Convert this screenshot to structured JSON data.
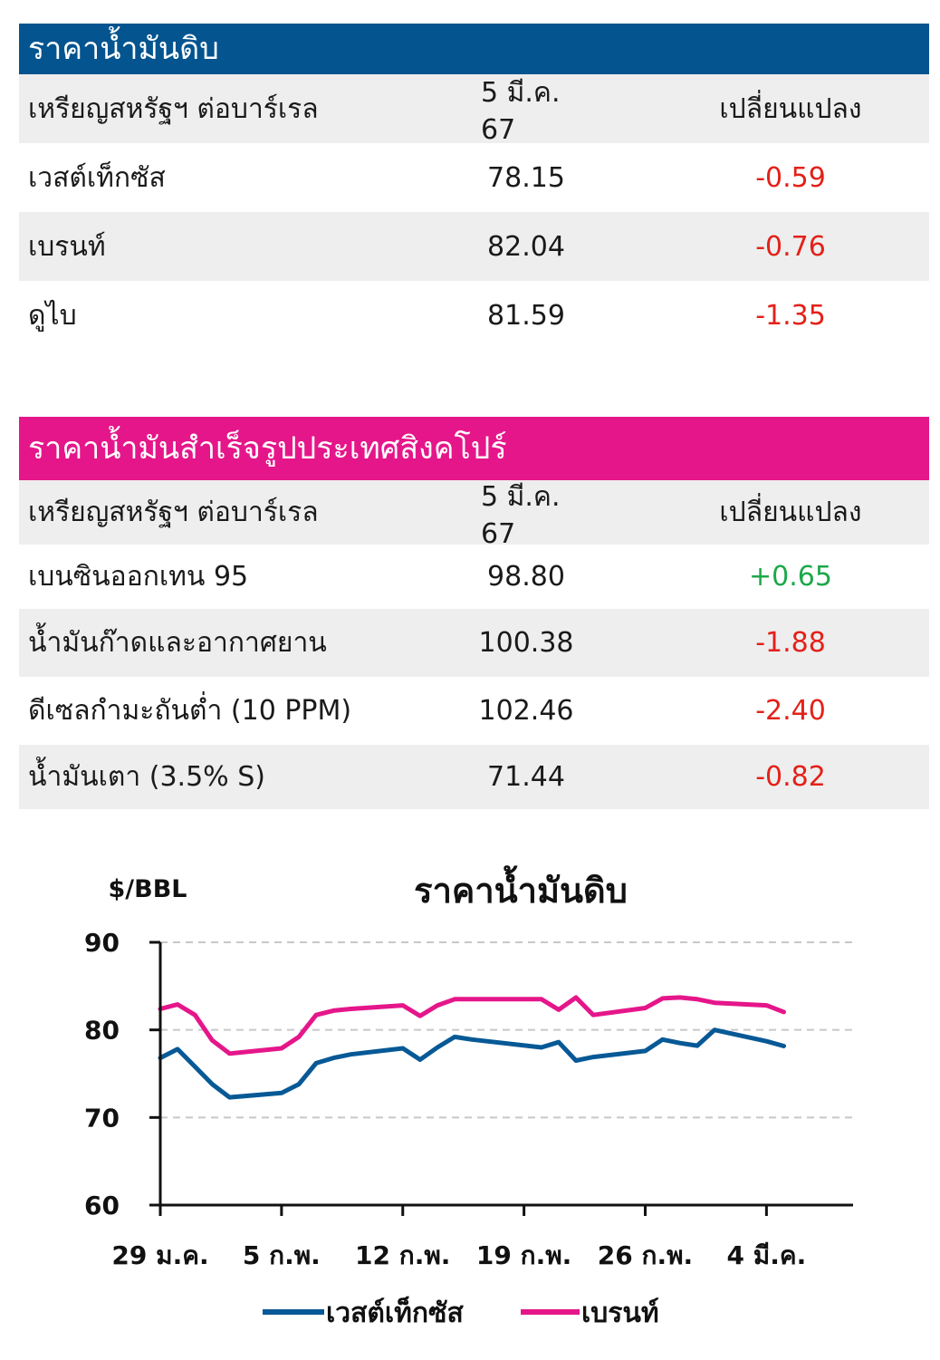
{
  "crude": {
    "title": "ราคาน้ำมันดิบ",
    "header": {
      "c1": "เหรียญสหรัฐฯ ต่อบาร์เรล",
      "c2": "5 มี.ค. 67",
      "c3": "เปลี่ยนแปลง"
    },
    "rows": [
      {
        "name": "เวสต์เท็กซัส",
        "price": "78.15",
        "change": "-0.59"
      },
      {
        "name": "เบรนท์",
        "price": "82.04",
        "change": "-0.76"
      },
      {
        "name": "ดูไบ",
        "price": "81.59",
        "change": "-1.35"
      }
    ]
  },
  "singapore": {
    "title": "ราคาน้ำมันสำเร็จรูปประเทศสิงคโปร์",
    "header": {
      "c1": "เหรียญสหรัฐฯ ต่อบาร์เรล",
      "c2": "5 มี.ค. 67",
      "c3": "เปลี่ยนแปลง"
    },
    "rows": [
      {
        "name": "เบนซินออกเทน 95",
        "price": "98.80",
        "change": "+0.65"
      },
      {
        "name": "น้ำมันก๊าดและอากาศยาน",
        "price": "100.38",
        "change": "-1.88"
      },
      {
        "name": "ดีเซลกำมะถันต่ำ (10 PPM)",
        "price": "102.46",
        "change": "-2.40"
      },
      {
        "name": "น้ำมันเตา (3.5% S)",
        "price": "71.44",
        "change": "-0.82"
      }
    ]
  },
  "colors": {
    "blue_header": "#03548f",
    "pink_header": "#e5168a",
    "negative": "#e32119",
    "positive": "#1ca84a"
  },
  "chart_data": {
    "type": "line",
    "title": "ราคาน้ำมันดิบ",
    "ylabel": "$/BBL",
    "ylim": [
      60,
      90
    ],
    "yticks": [
      60,
      70,
      80,
      90
    ],
    "xlim": [
      "29 Jan 2024",
      "9 Mar 2024"
    ],
    "xticks": [
      {
        "date": "29 Jan 2024",
        "label": "29 ม.ค."
      },
      {
        "date": "5 Feb 2024",
        "label": "5 ก.พ."
      },
      {
        "date": "12 Feb 2024",
        "label": "12 ก.พ."
      },
      {
        "date": "19 Feb 2024",
        "label": "19 ก.พ."
      },
      {
        "date": "26 Feb 2024",
        "label": "26 ก.พ."
      },
      {
        "date": "4 Mar 2024",
        "label": "4 มี.ค."
      }
    ],
    "grid": true,
    "legend_position": "bottom",
    "x": [
      "29 Jan 2024",
      "30 Jan 2024",
      "31 Jan 2024",
      "1 Feb 2024",
      "2 Feb 2024",
      "5 Feb 2024",
      "6 Feb 2024",
      "7 Feb 2024",
      "8 Feb 2024",
      "9 Feb 2024",
      "12 Feb 2024",
      "13 Feb 2024",
      "14 Feb 2024",
      "15 Feb 2024",
      "16 Feb 2024",
      "20 Feb 2024",
      "21 Feb 2024",
      "22 Feb 2024",
      "23 Feb 2024",
      "26 Feb 2024",
      "27 Feb 2024",
      "28 Feb 2024",
      "29 Feb 2024",
      "1 Mar 2024",
      "4 Mar 2024",
      "5 Mar 2024"
    ],
    "series": [
      {
        "name": "เวสต์เท็กซัส",
        "color": "#075996",
        "values": [
          76.8,
          77.8,
          75.8,
          73.8,
          72.3,
          72.8,
          73.8,
          76.2,
          76.8,
          77.2,
          77.9,
          76.6,
          78.0,
          79.2,
          78.9,
          78.0,
          78.6,
          76.5,
          76.9,
          77.6,
          78.9,
          78.5,
          78.2,
          80.0,
          78.7,
          78.15
        ]
      },
      {
        "name": "เบรนท์",
        "color": "#e5168a",
        "values": [
          82.4,
          82.9,
          81.7,
          78.8,
          77.3,
          77.9,
          79.2,
          81.7,
          82.2,
          82.4,
          82.8,
          81.6,
          82.8,
          83.5,
          83.5,
          83.5,
          82.3,
          83.7,
          81.7,
          82.5,
          83.6,
          83.7,
          83.5,
          83.1,
          82.8,
          82.04
        ]
      }
    ]
  }
}
